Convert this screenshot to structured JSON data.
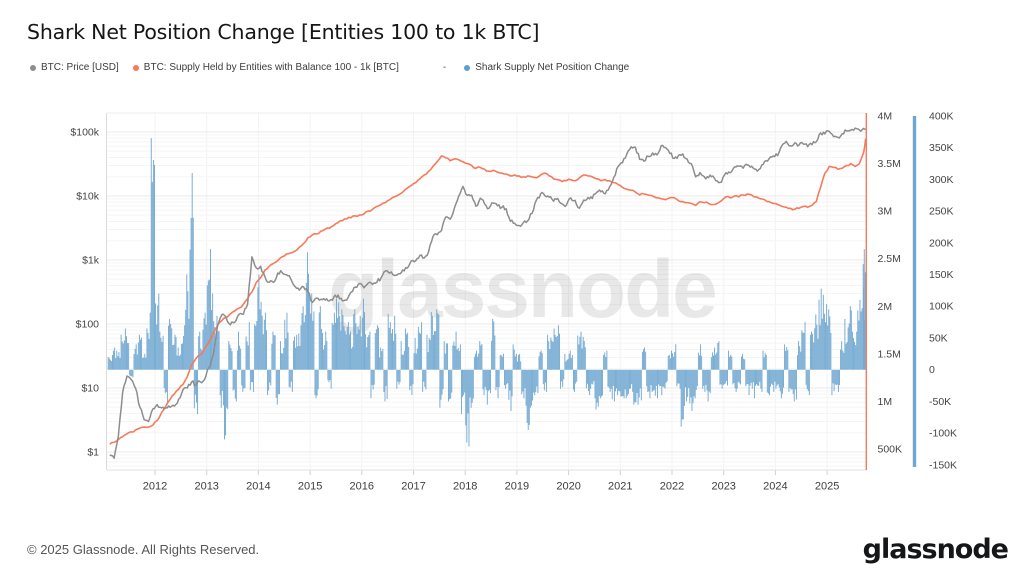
{
  "title": "Shark Net Position Change [Entities 100 to 1k BTC]",
  "watermark": "glassnode",
  "legend_separator": "-",
  "legend": [
    {
      "label": "BTC: Price [USD]",
      "color": "#8d8d8d"
    },
    {
      "label": "BTC: Supply Held by Entities with Balance 100 - 1k [BTC]",
      "color": "#f8795a"
    },
    {
      "label": "Shark Supply Net Position Change",
      "color": "#5f9dd1"
    }
  ],
  "footer": {
    "copyright": "© 2025 Glassnode. All Rights Reserved.",
    "brand": "glassnode"
  },
  "chart_data": {
    "type": "mixed",
    "x": {
      "start_year": 2011,
      "start_month": 2,
      "interval": "month",
      "count": 177
    },
    "x_tick_years": [
      2012,
      2013,
      2014,
      2015,
      2016,
      2017,
      2018,
      2019,
      2020,
      2021,
      2022,
      2023,
      2024,
      2025
    ],
    "axes": {
      "price": {
        "position": "left",
        "scale": "log",
        "unit": "USD",
        "tick_values": [
          100000,
          10000,
          1000,
          100,
          10,
          1
        ],
        "tick_labels": [
          "$100k",
          "$10k",
          "$1k",
          "$100",
          "$10",
          "$1"
        ]
      },
      "supply": {
        "position": "right-inner",
        "scale": "linear",
        "unit": "M BTC",
        "tick_values": [
          4,
          3.5,
          3,
          2.5,
          2,
          1.5,
          1,
          0.5
        ],
        "tick_labels": [
          "4M",
          "3.5M",
          "3M",
          "2.5M",
          "2M",
          "1.5M",
          "1M",
          "500K"
        ]
      },
      "npc": {
        "position": "right-outer",
        "scale": "linear",
        "unit": "K BTC",
        "tick_values": [
          400,
          350,
          300,
          250,
          200,
          150,
          100,
          50,
          0,
          -50,
          -100,
          -150
        ],
        "tick_labels": [
          "400K",
          "350K",
          "300K",
          "250K",
          "200K",
          "150K",
          "100K",
          "50K",
          "0",
          "-50K",
          "-100K",
          "-150K"
        ]
      }
    },
    "grid": true,
    "legend_position": "top",
    "series": [
      {
        "name": "BTC: Price [USD]",
        "type": "line",
        "axis": "price",
        "color": "#8d8d8d",
        "values": [
          0.9,
          0.8,
          1.8,
          8.7,
          15.4,
          13.5,
          9.9,
          5.0,
          3.2,
          3.0,
          4.7,
          5.5,
          4.9,
          4.9,
          5.0,
          5.2,
          6.7,
          9.4,
          10.0,
          12.4,
          11.2,
          12.5,
          13.5,
          20.4,
          33.4,
          93,
          139,
          128,
          97,
          106,
          141,
          141,
          204,
          1120,
          754,
          800,
          550,
          450,
          446,
          627,
          635,
          589,
          509,
          386,
          338,
          378,
          320,
          217,
          254,
          244,
          236,
          230,
          263,
          284,
          230,
          236,
          314,
          377,
          430,
          368,
          437,
          416,
          448,
          531,
          673,
          624,
          575,
          609,
          700,
          745,
          963,
          970,
          1180,
          1080,
          1350,
          2300,
          2480,
          2875,
          4700,
          4340,
          6470,
          9950,
          14150,
          10200,
          10300,
          6930,
          9240,
          7490,
          6400,
          7730,
          7030,
          6630,
          6340,
          4020,
          3740,
          3460,
          3850,
          4100,
          5320,
          8560,
          10800,
          10100,
          9600,
          8300,
          9150,
          7550,
          7190,
          9350,
          8550,
          6440,
          8620,
          9460,
          9140,
          11350,
          11650,
          10780,
          13800,
          19700,
          29000,
          33100,
          45100,
          58800,
          57800,
          37300,
          35000,
          41500,
          47100,
          43800,
          61300,
          57000,
          46200,
          38500,
          43200,
          45500,
          37700,
          31800,
          19900,
          23300,
          20000,
          19400,
          20500,
          17200,
          16500,
          23100,
          23100,
          28500,
          29200,
          27200,
          30500,
          29200,
          26000,
          26900,
          34700,
          37700,
          42300,
          42600,
          61200,
          71300,
          60600,
          67500,
          62700,
          64600,
          59000,
          63300,
          70200,
          96400,
          93400,
          102000,
          84400,
          82500,
          94200,
          104000,
          107000,
          115000,
          108000,
          114000,
          110000
        ]
      },
      {
        "name": "BTC: Supply Held by Entities with Balance 100 - 1k [BTC]",
        "type": "line",
        "axis": "supply",
        "color": "#f8795a",
        "values": [
          0.55,
          0.57,
          0.6,
          0.63,
          0.66,
          0.68,
          0.7,
          0.72,
          0.73,
          0.73,
          0.75,
          0.8,
          0.88,
          0.95,
          1.02,
          1.08,
          1.13,
          1.18,
          1.26,
          1.38,
          1.45,
          1.49,
          1.55,
          1.62,
          1.72,
          1.8,
          1.85,
          1.88,
          1.92,
          1.95,
          1.98,
          2.02,
          2.08,
          2.15,
          2.25,
          2.3,
          2.38,
          2.42,
          2.45,
          2.48,
          2.52,
          2.55,
          2.56,
          2.58,
          2.62,
          2.66,
          2.72,
          2.75,
          2.76,
          2.79,
          2.81,
          2.82,
          2.85,
          2.88,
          2.9,
          2.92,
          2.93,
          2.95,
          2.96,
          2.97,
          3.0,
          3.02,
          3.05,
          3.07,
          3.09,
          3.12,
          3.15,
          3.17,
          3.2,
          3.24,
          3.27,
          3.3,
          3.34,
          3.38,
          3.42,
          3.47,
          3.52,
          3.58,
          3.56,
          3.53,
          3.55,
          3.54,
          3.52,
          3.5,
          3.48,
          3.45,
          3.46,
          3.44,
          3.42,
          3.43,
          3.41,
          3.4,
          3.39,
          3.37,
          3.38,
          3.37,
          3.36,
          3.37,
          3.36,
          3.35,
          3.38,
          3.4,
          3.37,
          3.34,
          3.33,
          3.31,
          3.32,
          3.33,
          3.32,
          3.35,
          3.38,
          3.37,
          3.36,
          3.34,
          3.32,
          3.33,
          3.32,
          3.3,
          3.28,
          3.25,
          3.23,
          3.22,
          3.2,
          3.17,
          3.18,
          3.17,
          3.16,
          3.14,
          3.13,
          3.12,
          3.14,
          3.14,
          3.11,
          3.1,
          3.09,
          3.08,
          3.06,
          3.1,
          3.09,
          3.08,
          3.07,
          3.08,
          3.11,
          3.15,
          3.14,
          3.16,
          3.15,
          3.17,
          3.18,
          3.17,
          3.15,
          3.13,
          3.12,
          3.1,
          3.08,
          3.07,
          3.05,
          3.04,
          3.03,
          3.02,
          3.03,
          3.05,
          3.04,
          3.06,
          3.1,
          3.25,
          3.4,
          3.47,
          3.46,
          3.44,
          3.45,
          3.48,
          3.5,
          3.47,
          3.5,
          3.62,
          3.76
        ]
      },
      {
        "name": "Shark Supply Net Position Change",
        "type": "bar",
        "axis": "npc",
        "color": "#74aad2",
        "values": [
          20,
          35,
          30,
          55,
          65,
          -12,
          40,
          55,
          25,
          90,
          365,
          120,
          60,
          -55,
          80,
          55,
          35,
          70,
          150,
          310,
          -70,
          60,
          90,
          190,
          120,
          85,
          -60,
          -110,
          45,
          -50,
          60,
          -35,
          75,
          -35,
          130,
          150,
          90,
          -40,
          60,
          -55,
          45,
          90,
          -35,
          55,
          70,
          100,
          185,
          120,
          -45,
          100,
          60,
          -30,
          90,
          112,
          95,
          75,
          60,
          95,
          85,
          112,
          60,
          -45,
          70,
          35,
          -50,
          88,
          85,
          -30,
          45,
          65,
          -40,
          50,
          75,
          -35,
          55,
          91,
          95,
          -60,
          45,
          -50,
          60,
          40,
          -70,
          -121,
          -60,
          30,
          45,
          -40,
          -55,
          80,
          -45,
          25,
          -30,
          -65,
          40,
          25,
          -45,
          -95,
          -60,
          -40,
          30,
          -35,
          55,
          65,
          70,
          -30,
          25,
          30,
          -35,
          60,
          52,
          -40,
          -30,
          -63,
          -45,
          30,
          -35,
          -50,
          -40,
          -45,
          -45,
          -35,
          -55,
          -55,
          35,
          -45,
          -35,
          -45,
          -40,
          -30,
          30,
          40,
          -30,
          -90,
          -50,
          -65,
          -45,
          40,
          -35,
          -50,
          35,
          45,
          -30,
          -25,
          30,
          -35,
          -30,
          25,
          -40,
          -30,
          -45,
          -35,
          30,
          -40,
          -35,
          -30,
          -45,
          40,
          -35,
          -50,
          45,
          75,
          -40,
          60,
          87,
          128,
          118,
          95,
          -40,
          -35,
          45,
          80,
          100,
          60,
          110,
          190,
          150
        ]
      }
    ]
  }
}
